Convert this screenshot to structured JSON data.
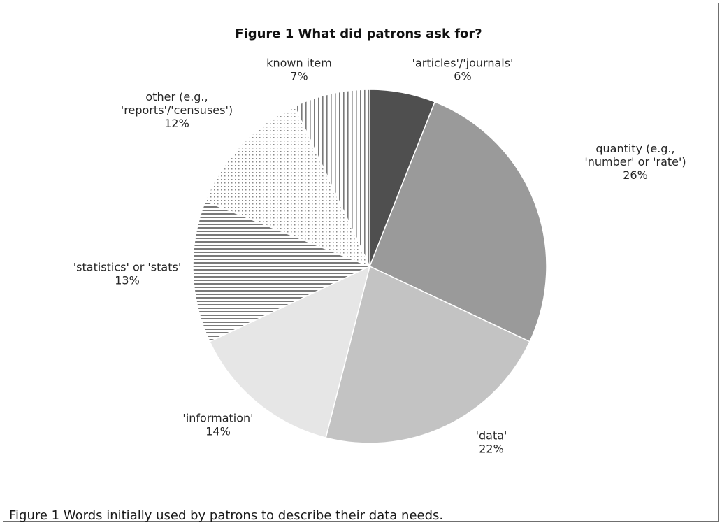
{
  "chart_data": {
    "type": "pie",
    "title": "Figure 1 What did patrons ask for?",
    "start_angle_deg": 0,
    "direction": "clockwise",
    "slices": [
      {
        "label": [
          "'articles'/'journals'"
        ],
        "percent_label": "6%",
        "value": 6,
        "color": "#4f4f4f",
        "fill_style": "solid"
      },
      {
        "label": [
          "quantity (e.g.,",
          "'number' or 'rate')"
        ],
        "percent_label": "26%",
        "value": 26,
        "color": "#9a9a9a",
        "fill_style": "solid"
      },
      {
        "label": [
          "'data'"
        ],
        "percent_label": "22%",
        "value": 22,
        "color": "#c3c3c3",
        "fill_style": "solid"
      },
      {
        "label": [
          "'information'"
        ],
        "percent_label": "14%",
        "value": 14,
        "color": "#e6e6e6",
        "fill_style": "solid"
      },
      {
        "label": [
          "'statistics' or 'stats'"
        ],
        "percent_label": "13%",
        "value": 13,
        "color": "#7a7a7a",
        "fill_style": "horizontal-stripes"
      },
      {
        "label": [
          "other (e.g.,",
          "'reports'/'censuses')"
        ],
        "percent_label": "12%",
        "value": 12,
        "color": "#8a8a8a",
        "fill_style": "dots"
      },
      {
        "label": [
          "known item"
        ],
        "percent_label": "7%",
        "value": 7,
        "color": "#7a7a7a",
        "fill_style": "vertical-stripes"
      }
    ]
  },
  "caption": "Figure 1 Words initially used by patrons to describe their data needs."
}
